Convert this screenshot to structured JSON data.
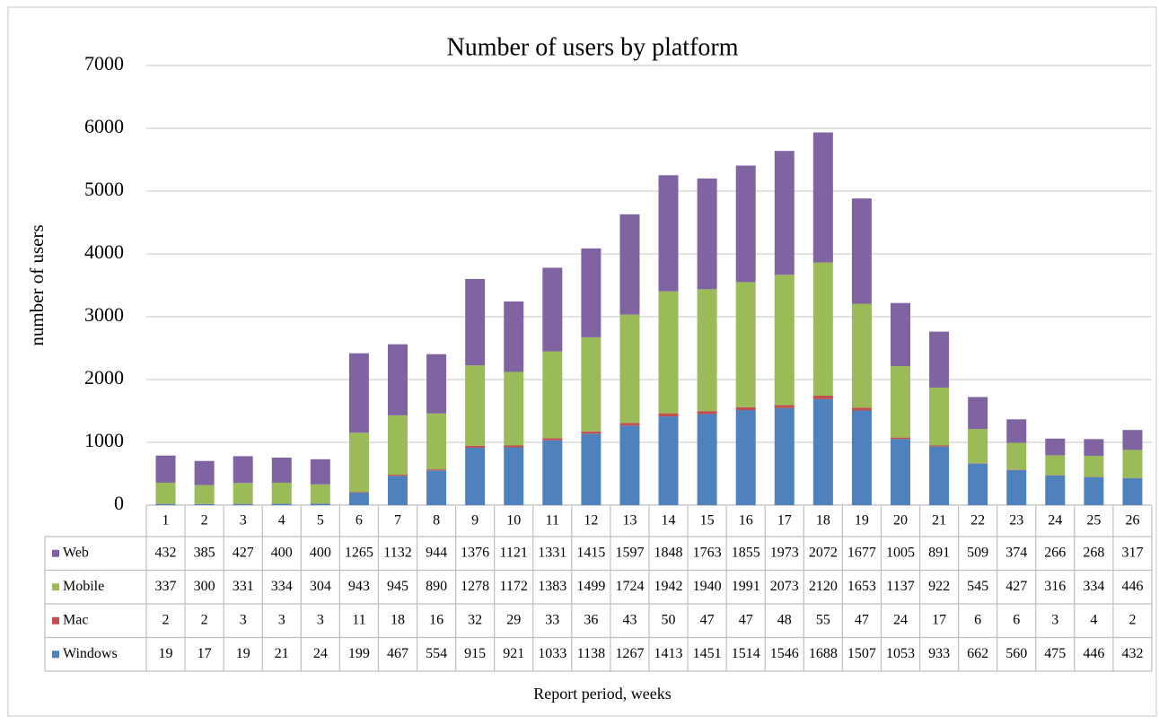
{
  "chart_data": {
    "type": "stacked_bar",
    "title": "Number of users by platform",
    "y_label": "number of users",
    "x_label": "Report period, weeks",
    "categories": [
      "1",
      "2",
      "3",
      "4",
      "5",
      "6",
      "7",
      "8",
      "9",
      "10",
      "11",
      "12",
      "13",
      "14",
      "15",
      "16",
      "17",
      "18",
      "19",
      "20",
      "21",
      "22",
      "23",
      "24",
      "25",
      "26"
    ],
    "series": [
      {
        "name": "Web",
        "color": "#8064a2",
        "values": [
          432,
          385,
          427,
          400,
          400,
          1265,
          1132,
          944,
          1376,
          1121,
          1331,
          1415,
          1597,
          1848,
          1763,
          1855,
          1973,
          2072,
          1677,
          1005,
          891,
          509,
          374,
          266,
          268,
          317
        ]
      },
      {
        "name": "Mobile",
        "color": "#9bbb59",
        "values": [
          337,
          300,
          331,
          334,
          304,
          943,
          945,
          890,
          1278,
          1172,
          1383,
          1499,
          1724,
          1942,
          1940,
          1991,
          2073,
          2120,
          1653,
          1137,
          922,
          545,
          427,
          316,
          334,
          446
        ]
      },
      {
        "name": "Mac",
        "color": "#c0504d",
        "values": [
          2,
          2,
          3,
          3,
          3,
          11,
          18,
          16,
          32,
          29,
          33,
          36,
          43,
          50,
          47,
          47,
          48,
          55,
          47,
          24,
          17,
          6,
          6,
          3,
          4,
          2
        ]
      },
      {
        "name": "Windows",
        "color": "#4f81bd",
        "values": [
          19,
          17,
          19,
          21,
          24,
          199,
          467,
          554,
          915,
          921,
          1033,
          1138,
          1267,
          1413,
          1451,
          1514,
          1546,
          1688,
          1507,
          1053,
          933,
          662,
          560,
          475,
          446,
          432
        ]
      }
    ],
    "ylim": [
      0,
      7000
    ],
    "yticks": [
      0,
      1000,
      2000,
      3000,
      4000,
      5000,
      6000,
      7000
    ],
    "grid": true
  }
}
